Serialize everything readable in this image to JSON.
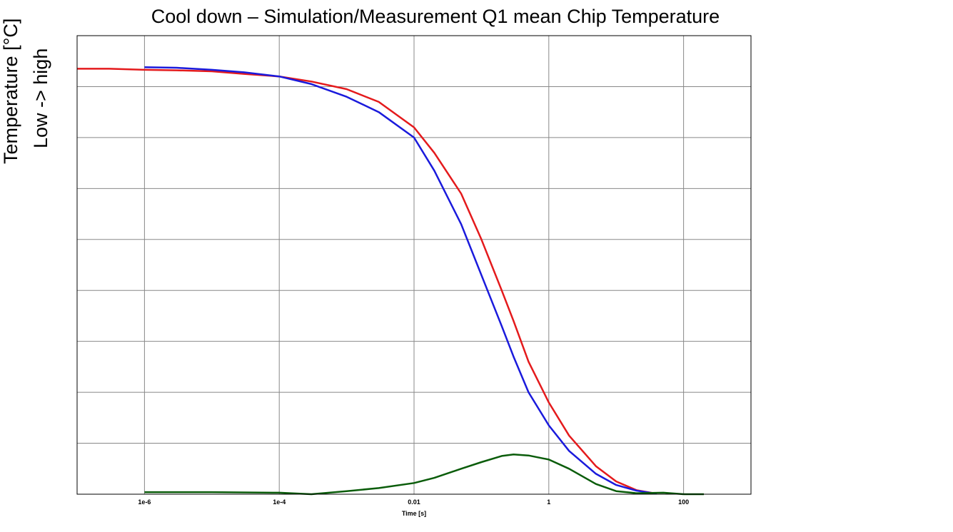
{
  "chart_data": {
    "type": "line",
    "title": "Cool down – Simulation/Measurement Q1 mean Chip Temperature",
    "ylabel_lines": [
      "Temperature [°C]",
      "Low -> high"
    ],
    "xlabel": "Time [s]",
    "x_scale": "log",
    "xlim": [
      1e-07,
      1000
    ],
    "ylim": [
      0,
      9
    ],
    "x_ticks": [
      1e-06,
      0.0001,
      0.01,
      1,
      100
    ],
    "x_tick_labels": [
      "1e-6",
      "1e-4",
      "0.01",
      "1",
      "100"
    ],
    "y_gridlines": [
      1,
      2,
      3,
      4,
      5,
      6,
      7,
      8
    ],
    "grid": true,
    "legend": "none",
    "series": [
      {
        "color": "#e41a1c",
        "x": [
          1e-07,
          3e-07,
          1e-06,
          3e-06,
          1e-05,
          3e-05,
          0.0001,
          0.0003,
          0.001,
          0.003,
          0.01,
          0.02,
          0.05,
          0.1,
          0.2,
          0.3,
          0.5,
          1,
          2,
          5,
          10,
          20,
          40
        ],
        "y": [
          8.35,
          8.35,
          8.33,
          8.32,
          8.3,
          8.25,
          8.2,
          8.1,
          7.95,
          7.7,
          7.2,
          6.7,
          5.9,
          5.0,
          4.0,
          3.4,
          2.6,
          1.8,
          1.15,
          0.55,
          0.25,
          0.08,
          0.01
        ]
      },
      {
        "color": "#1a1adc",
        "x": [
          1e-06,
          3e-06,
          1e-05,
          3e-05,
          0.0001,
          0.0003,
          0.001,
          0.003,
          0.01,
          0.02,
          0.05,
          0.1,
          0.2,
          0.3,
          0.5,
          1,
          2,
          5,
          10,
          20,
          40
        ],
        "y": [
          8.38,
          8.37,
          8.33,
          8.28,
          8.2,
          8.05,
          7.8,
          7.5,
          7.0,
          6.35,
          5.3,
          4.3,
          3.3,
          2.7,
          2.0,
          1.35,
          0.85,
          0.4,
          0.18,
          0.07,
          0.01
        ]
      },
      {
        "color": "#0a5c0a",
        "x": [
          1e-06,
          1e-05,
          0.0001,
          0.0003,
          0.001,
          0.003,
          0.01,
          0.02,
          0.05,
          0.1,
          0.2,
          0.3,
          0.5,
          1,
          2,
          5,
          10,
          20,
          50,
          100,
          200
        ],
        "y": [
          0.04,
          0.04,
          0.03,
          0.0,
          0.06,
          0.12,
          0.22,
          0.32,
          0.5,
          0.63,
          0.75,
          0.78,
          0.76,
          0.68,
          0.5,
          0.2,
          0.06,
          0.02,
          0.03,
          0.0,
          0.0
        ]
      }
    ]
  }
}
